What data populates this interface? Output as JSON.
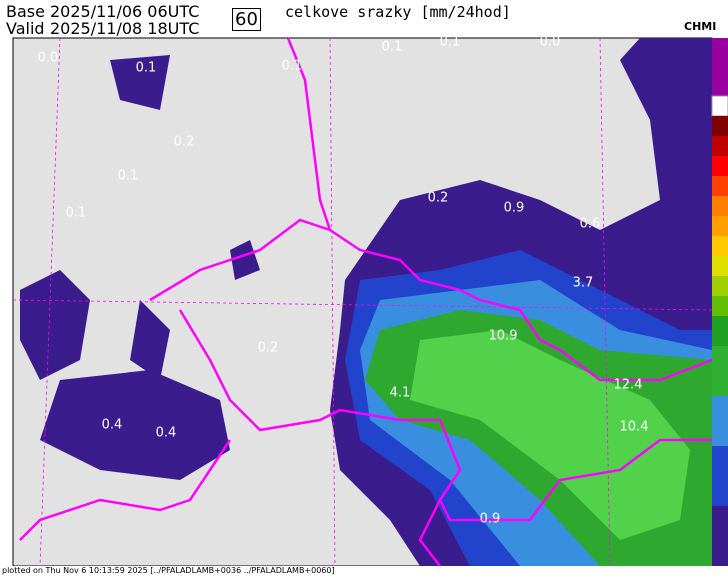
{
  "header": {
    "base_label": "Base",
    "base_time": "2025/11/06 06UTC",
    "valid_label": "Valid",
    "valid_time": "2025/11/08 18UTC",
    "forecast_hour": "60",
    "title": "celkove srazky [mm/24hod]",
    "logo": "CHMI"
  },
  "map": {
    "labels": [
      "0.0",
      "0.1",
      "0.1",
      "0.0",
      "0.1",
      "0.1",
      "0.2",
      "0.1",
      "0.1",
      "0.2",
      "0.9",
      "0.6",
      "3.7",
      "10.9",
      "0.2",
      "4.1",
      "12.4",
      "10.4",
      "0.4",
      "0.4",
      "0.9"
    ]
  },
  "footer": "plotted on Thu Nov  6 10:13:59 2025 [../PFALADLAMB+0036 ../PFALADLAMB+0060]"
}
